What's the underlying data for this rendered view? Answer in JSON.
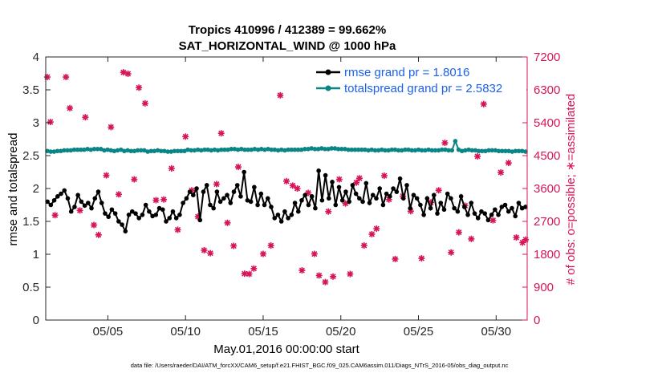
{
  "chart_data": {
    "type": "line",
    "title_line1": "Tropics 410996 / 412389 = 99.662%",
    "title_line2": "SAT_HORIZONTAL_WIND @ 1000 hPa",
    "xlabel": "May.01,2016 00:00:00 start",
    "ylabel_left": "rmse and totalspread",
    "ylabel_right": "# of obs: o=possible; ∗=assimilated",
    "footer": "data file: /Users/raeder/DAI/ATM_forcXX/CAM6_setup/f.e21.FHIST_BGC.f09_025.CAM6assim.011/Diags_NTrS_2016-05/obs_diag_output.nc",
    "x_ticks": [
      "05/05",
      "05/10",
      "05/15",
      "05/20",
      "05/25",
      "05/30"
    ],
    "x_tick_days": [
      5,
      10,
      15,
      20,
      25,
      30
    ],
    "xlim_days": [
      1,
      32
    ],
    "ylim_left": [
      0,
      4
    ],
    "y_ticks_left": [
      "0",
      "0.5",
      "1",
      "1.5",
      "2",
      "2.5",
      "3",
      "3.5",
      "4"
    ],
    "ylim_right": [
      0,
      7200
    ],
    "y_ticks_right": [
      "0",
      "900",
      "1800",
      "2700",
      "3600",
      "4500",
      "5400",
      "6300",
      "7200"
    ],
    "grid": false,
    "legend_position": "top-right",
    "colors": {
      "rmse": "#000000",
      "spread": "#0a8585",
      "obs": "#d6145a",
      "legend_text": "#1a5ff0",
      "right_axis": "#d6145a"
    },
    "series": [
      {
        "name": "rmse grand pr = 1.8016",
        "axis": "left",
        "values": [
          1.8,
          1.75,
          1.82,
          1.88,
          1.92,
          1.97,
          1.85,
          1.65,
          1.72,
          1.9,
          1.8,
          1.74,
          1.78,
          1.7,
          1.85,
          1.95,
          1.78,
          1.62,
          1.57,
          1.68,
          1.62,
          1.5,
          1.45,
          1.35,
          1.6,
          1.65,
          1.62,
          1.55,
          1.6,
          1.75,
          1.65,
          1.58,
          1.6,
          1.7,
          1.68,
          1.5,
          1.55,
          1.65,
          1.55,
          1.6,
          1.78,
          1.85,
          1.95,
          1.9,
          2.0,
          1.52,
          1.95,
          2.05,
          1.75,
          1.7,
          1.95,
          1.8,
          1.85,
          1.9,
          1.78,
          1.95,
          2.05,
          1.88,
          2.25,
          1.82,
          1.8,
          2.02,
          1.75,
          1.92,
          1.75,
          1.85,
          1.72,
          1.55,
          1.6,
          1.5,
          1.65,
          1.55,
          1.6,
          1.78,
          1.65,
          1.82,
          1.9,
          1.75,
          1.88,
          1.7,
          2.27,
          1.82,
          2.2,
          1.85,
          2.1,
          1.75,
          2.02,
          1.82,
          1.95,
          1.8,
          2.05,
          1.92,
          1.85,
          1.8,
          2.08,
          1.78,
          1.9,
          1.85,
          2.0,
          1.75,
          1.92,
          1.88,
          2.0,
          1.95,
          2.15,
          1.85,
          2.05,
          1.7,
          1.9,
          1.85,
          1.75,
          1.6,
          1.85,
          1.7,
          1.9,
          1.62,
          1.78,
          1.68,
          1.92,
          1.85,
          1.7,
          1.65,
          1.88,
          1.72,
          1.6,
          1.78,
          1.62,
          1.55,
          1.65,
          1.62,
          1.52,
          1.6,
          1.68,
          1.6,
          1.72,
          1.75,
          1.65,
          1.7,
          1.58,
          1.78,
          1.7,
          1.72
        ]
      },
      {
        "name": "totalspread grand pr = 2.5832",
        "axis": "left",
        "values": [
          2.57,
          2.56,
          2.56,
          2.57,
          2.57,
          2.58,
          2.58,
          2.58,
          2.59,
          2.59,
          2.59,
          2.59,
          2.6,
          2.59,
          2.6,
          2.6,
          2.6,
          2.58,
          2.59,
          2.58,
          2.57,
          2.58,
          2.59,
          2.57,
          2.58,
          2.57,
          2.57,
          2.58,
          2.58,
          2.58,
          2.56,
          2.57,
          2.57,
          2.58,
          2.57,
          2.57,
          2.56,
          2.56,
          2.57,
          2.57,
          2.57,
          2.57,
          2.59,
          2.58,
          2.58,
          2.59,
          2.58,
          2.59,
          2.59,
          2.58,
          2.59,
          2.58,
          2.59,
          2.59,
          2.59,
          2.6,
          2.6,
          2.59,
          2.6,
          2.59,
          2.59,
          2.59,
          2.6,
          2.59,
          2.6,
          2.59,
          2.6,
          2.59,
          2.59,
          2.58,
          2.59,
          2.58,
          2.59,
          2.59,
          2.59,
          2.59,
          2.59,
          2.6,
          2.6,
          2.61,
          2.6,
          2.6,
          2.61,
          2.6,
          2.6,
          2.61,
          2.61,
          2.6,
          2.6,
          2.6,
          2.59,
          2.59,
          2.59,
          2.59,
          2.59,
          2.59,
          2.58,
          2.59,
          2.58,
          2.58,
          2.59,
          2.58,
          2.58,
          2.59,
          2.59,
          2.58,
          2.58,
          2.59,
          2.59,
          2.58,
          2.58,
          2.59,
          2.58,
          2.58,
          2.59,
          2.58,
          2.58,
          2.58,
          2.59,
          2.59,
          2.58,
          2.58,
          2.72,
          2.59,
          2.57,
          2.58,
          2.59,
          2.58,
          2.58,
          2.57,
          2.57,
          2.57,
          2.58,
          2.58,
          2.58,
          2.57,
          2.57,
          2.57,
          2.57,
          2.56,
          2.57,
          2.57,
          2.57,
          2.56
        ]
      },
      {
        "name": "obs",
        "axis": "right",
        "points": [
          [
            1.1,
            6650
          ],
          [
            1.3,
            5420
          ],
          [
            1.6,
            2870
          ],
          [
            2.3,
            6650
          ],
          [
            2.55,
            5800
          ],
          [
            3.2,
            3000
          ],
          [
            3.55,
            5550
          ],
          [
            4.1,
            2600
          ],
          [
            4.4,
            2330
          ],
          [
            4.9,
            3960
          ],
          [
            5.2,
            5280
          ],
          [
            5.7,
            3440
          ],
          [
            6.0,
            6780
          ],
          [
            6.3,
            6740
          ],
          [
            6.7,
            3850
          ],
          [
            7.0,
            6360
          ],
          [
            7.4,
            5930
          ],
          [
            8.1,
            3280
          ],
          [
            8.6,
            3300
          ],
          [
            9.1,
            4150
          ],
          [
            9.5,
            2470
          ],
          [
            10.0,
            5020
          ],
          [
            10.4,
            3550
          ],
          [
            10.8,
            2830
          ],
          [
            11.2,
            1910
          ],
          [
            11.6,
            1830
          ],
          [
            12.0,
            3720
          ],
          [
            12.3,
            5110
          ],
          [
            12.7,
            2660
          ],
          [
            13.1,
            2030
          ],
          [
            13.4,
            4190
          ],
          [
            13.8,
            1270
          ],
          [
            14.1,
            1260
          ],
          [
            14.4,
            1410
          ],
          [
            15.0,
            1810
          ],
          [
            15.5,
            2040
          ],
          [
            16.1,
            6150
          ],
          [
            16.5,
            3800
          ],
          [
            16.9,
            3680
          ],
          [
            17.2,
            3600
          ],
          [
            17.5,
            1360
          ],
          [
            17.9,
            3480
          ],
          [
            18.3,
            1810
          ],
          [
            18.6,
            1220
          ],
          [
            19.0,
            1040
          ],
          [
            19.2,
            2970
          ],
          [
            19.5,
            1190
          ],
          [
            19.9,
            3850
          ],
          [
            20.3,
            3190
          ],
          [
            20.6,
            1260
          ],
          [
            21.0,
            3760
          ],
          [
            21.2,
            3880
          ],
          [
            21.5,
            2040
          ],
          [
            22.0,
            2350
          ],
          [
            22.3,
            2500
          ],
          [
            22.8,
            3950
          ],
          [
            23.1,
            3300
          ],
          [
            23.5,
            1670
          ],
          [
            24.0,
            3390
          ],
          [
            24.5,
            2980
          ],
          [
            25.2,
            1690
          ],
          [
            25.8,
            3220
          ],
          [
            26.3,
            3550
          ],
          [
            26.7,
            4850
          ],
          [
            27.1,
            1850
          ],
          [
            27.6,
            2400
          ],
          [
            28.0,
            3130
          ],
          [
            28.4,
            2220
          ],
          [
            28.8,
            4480
          ],
          [
            29.2,
            5910
          ],
          [
            29.8,
            2730
          ],
          [
            30.3,
            4040
          ],
          [
            30.8,
            4300
          ],
          [
            31.3,
            2260
          ],
          [
            31.7,
            2120
          ],
          [
            31.9,
            2200
          ]
        ]
      }
    ],
    "legend": [
      "rmse grand pr = 1.8016",
      "totalspread grand pr = 2.5832"
    ]
  }
}
